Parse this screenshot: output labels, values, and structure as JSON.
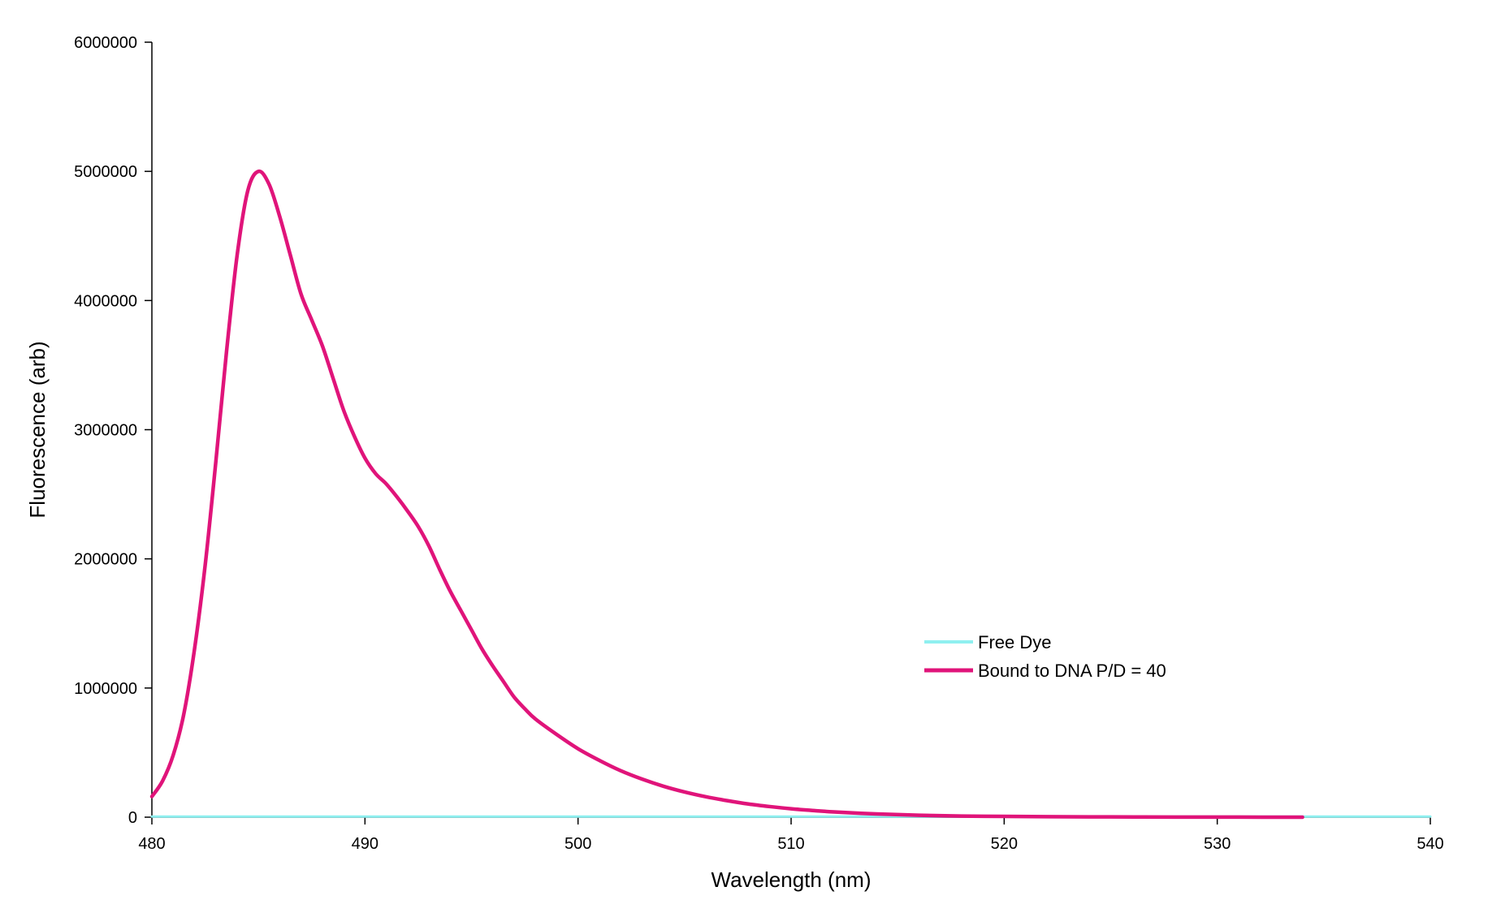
{
  "chart_data": {
    "type": "line",
    "title": "",
    "xlabel": "Wavelength (nm)",
    "ylabel": "Fluorescence (arb)",
    "xlim": [
      480,
      540
    ],
    "ylim": [
      0,
      6000000
    ],
    "x_ticks": [
      "480",
      "490",
      "500",
      "510",
      "520",
      "530",
      "540"
    ],
    "y_ticks": [
      "0",
      "1000000",
      "2000000",
      "3000000",
      "4000000",
      "5000000",
      "6000000"
    ],
    "grid": false,
    "legend_position": "right",
    "series": [
      {
        "name": "Free Dye",
        "color": "#8ff0f0",
        "x": [
          480,
          490,
          500,
          510,
          520,
          530,
          540
        ],
        "y": [
          5000,
          5000,
          5000,
          5000,
          5000,
          5000,
          5000
        ]
      },
      {
        "name": "Bound to DNA P/D = 40",
        "color": "#e0147a",
        "x": [
          480,
          480.5,
          481,
          481.5,
          482,
          482.5,
          483,
          483.5,
          484,
          484.5,
          485,
          485.5,
          486,
          486.5,
          487,
          487.5,
          488,
          488.5,
          489,
          489.5,
          490,
          490.5,
          491,
          491.5,
          492,
          492.5,
          493,
          493.5,
          494,
          494.5,
          495,
          495.5,
          496,
          496.5,
          497,
          497.5,
          498,
          499,
          500,
          501,
          502,
          503,
          504,
          505,
          506,
          507,
          508,
          509,
          510,
          511,
          512,
          514,
          516,
          518,
          520,
          522,
          525,
          528,
          531,
          534
        ],
        "y": [
          160000,
          280000,
          480000,
          800000,
          1300000,
          1950000,
          2750000,
          3600000,
          4350000,
          4850000,
          5000000,
          4900000,
          4650000,
          4350000,
          4050000,
          3850000,
          3650000,
          3400000,
          3150000,
          2950000,
          2780000,
          2660000,
          2580000,
          2480000,
          2370000,
          2250000,
          2100000,
          1920000,
          1750000,
          1600000,
          1450000,
          1300000,
          1170000,
          1050000,
          930000,
          840000,
          760000,
          640000,
          530000,
          440000,
          360000,
          295000,
          240000,
          195000,
          158000,
          128000,
          102000,
          82000,
          65000,
          52000,
          41000,
          25000,
          15000,
          9000,
          6000,
          4000,
          2000,
          1000,
          500,
          0
        ]
      }
    ]
  }
}
